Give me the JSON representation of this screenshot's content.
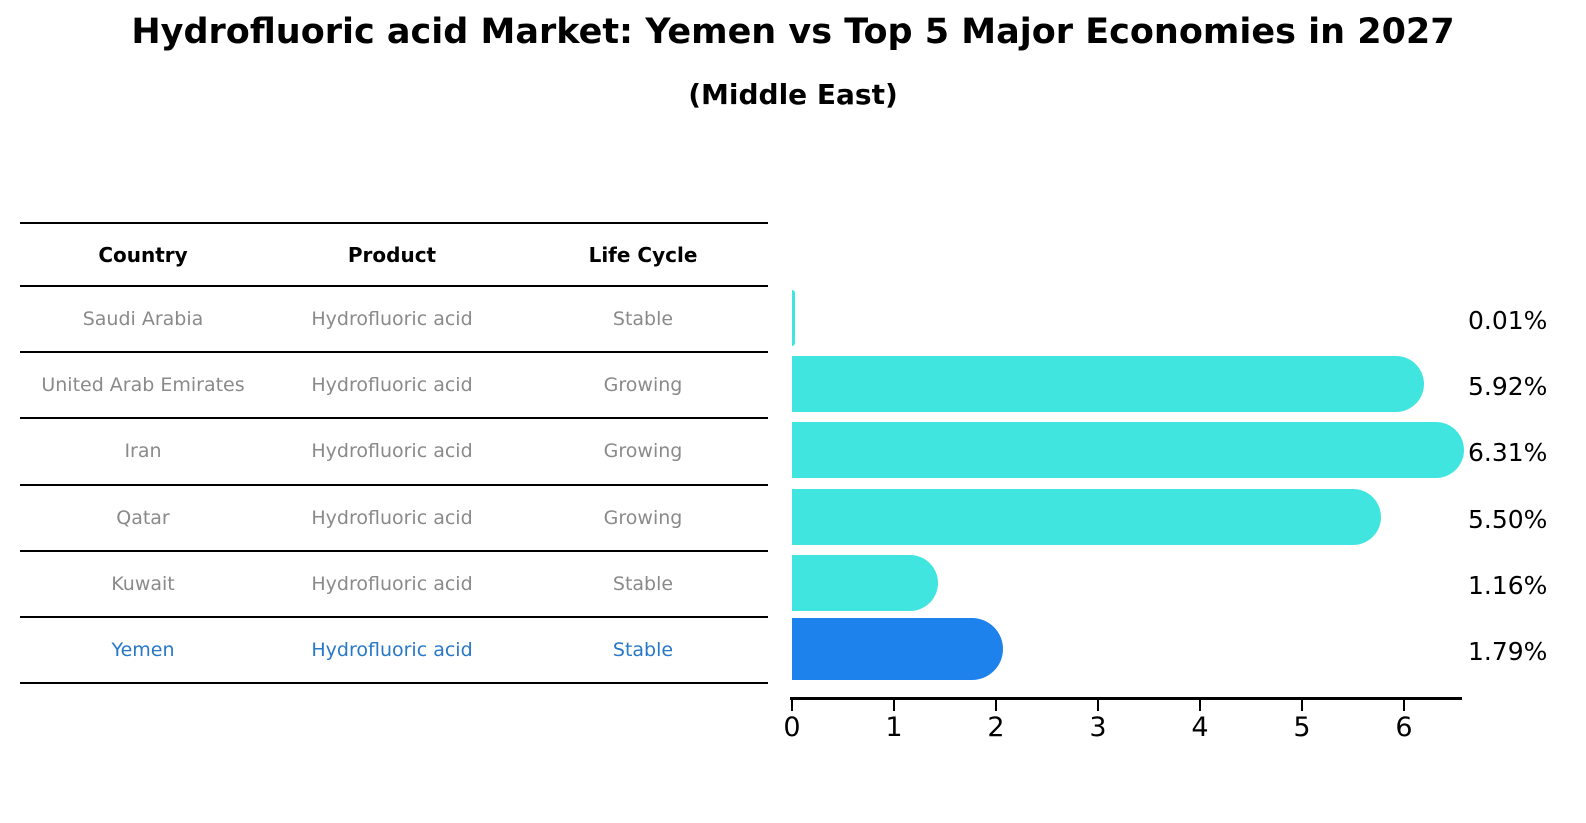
{
  "title": "Hydrofluoric acid Market: Yemen vs Top 5 Major Economies in 2027",
  "subtitle": "(Middle East)",
  "colors": {
    "bar_default": "#41e5e0",
    "bar_highlight": "#1e82ec",
    "highlight_text": "#2878c8",
    "table_text": "#8a8a8a",
    "axis_text": "#000000"
  },
  "table": {
    "headers": [
      "Country",
      "Product",
      "Life Cycle"
    ],
    "rows": [
      {
        "country": "Saudi Arabia",
        "product": "Hydrofluoric acid",
        "life_cycle": "Stable",
        "highlight": false
      },
      {
        "country": "United Arab Emirates",
        "product": "Hydrofluoric acid",
        "life_cycle": "Growing",
        "highlight": false
      },
      {
        "country": "Iran",
        "product": "Hydrofluoric acid",
        "life_cycle": "Growing",
        "highlight": false
      },
      {
        "country": "Qatar",
        "product": "Hydrofluoric acid",
        "life_cycle": "Growing",
        "highlight": false
      },
      {
        "country": "Kuwait",
        "product": "Hydrofluoric acid",
        "life_cycle": "Stable",
        "highlight": false
      },
      {
        "country": "Yemen",
        "product": "Hydrofluoric acid",
        "life_cycle": "Stable",
        "highlight": true
      }
    ]
  },
  "chart_data": {
    "type": "bar",
    "orientation": "horizontal",
    "title": "",
    "xlabel": "",
    "ylabel": "",
    "categories": [
      "Saudi Arabia",
      "United Arab Emirates",
      "Iran",
      "Qatar",
      "Kuwait",
      "Yemen"
    ],
    "values": [
      0.01,
      5.92,
      6.31,
      5.5,
      1.16,
      1.79
    ],
    "value_labels": [
      "0.01%",
      "5.92%",
      "6.31%",
      "5.50%",
      "1.16%",
      "1.79%"
    ],
    "highlight_index": 5,
    "x_ticks": [
      0,
      1,
      2,
      3,
      4,
      5,
      6
    ],
    "xlim": [
      0,
      6.57
    ],
    "grid": false,
    "legend": false
  }
}
